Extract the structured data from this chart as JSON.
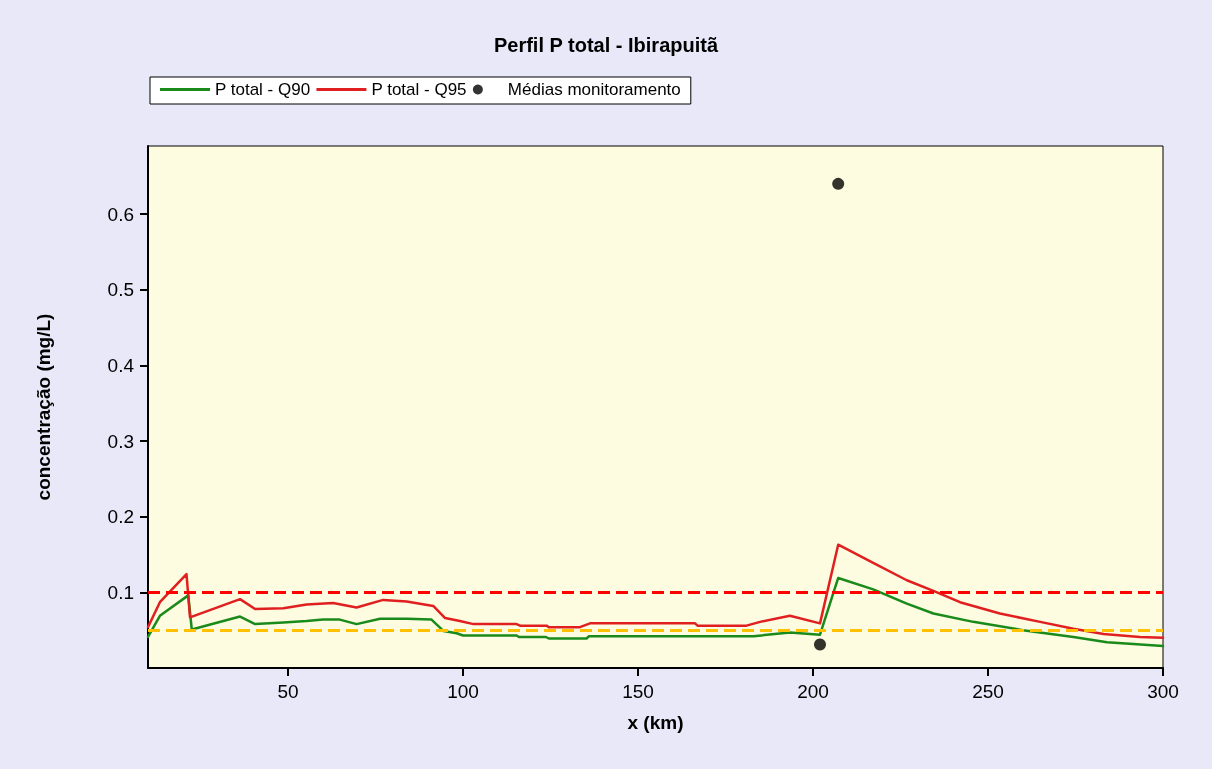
{
  "chart_data": {
    "type": "line",
    "title": "Perfil P total - Ibirapuitã",
    "xlabel": "x (km)",
    "ylabel": "concentração (mg/L)",
    "xlim": [
      10,
      300
    ],
    "xticks": [
      50,
      100,
      150,
      200,
      250,
      300
    ],
    "ylim": [
      0,
      0.69
    ],
    "yticks": [
      0.1,
      0.2,
      0.3,
      0.4,
      0.5,
      0.6
    ],
    "grid": false,
    "legend": "top",
    "line_style": "solid",
    "series": [
      {
        "name": "P total - Q90",
        "color": "#1a8a1a",
        "x": [
          10,
          13.4,
          21.5,
          22.5,
          36.3,
          40.6,
          48.7,
          55.3,
          60,
          64.8,
          69.6,
          76.3,
          83.9,
          91,
          94.4,
          98.2,
          100,
          115.3,
          116,
          123.7,
          124.5,
          135.3,
          136,
          183,
          193.4,
          202,
          207.2,
          217.2,
          226.8,
          234.4,
          245.8,
          260,
          274.4,
          284,
          300
        ],
        "values": [
          0.041,
          0.069,
          0.096,
          0.051,
          0.068,
          0.058,
          0.06,
          0.062,
          0.064,
          0.064,
          0.058,
          0.065,
          0.065,
          0.064,
          0.049,
          0.046,
          0.043,
          0.043,
          0.041,
          0.041,
          0.039,
          0.039,
          0.042,
          0.042,
          0.047,
          0.044,
          0.119,
          0.104,
          0.085,
          0.072,
          0.061,
          0.05,
          0.041,
          0.034,
          0.029
        ]
      },
      {
        "name": "P total - Q95",
        "color": "#e02020",
        "x": [
          10,
          13.4,
          21,
          22,
          36.3,
          40.6,
          48.7,
          55.3,
          62.9,
          69.6,
          77.2,
          83.9,
          91.5,
          94.9,
          99.1,
          103,
          115.3,
          116.3,
          123.9,
          124.5,
          133.4,
          136.3,
          166.3,
          167,
          181,
          184.9,
          193.4,
          202,
          207.2,
          217.2,
          226.8,
          234.4,
          242,
          253.4,
          264.9,
          274.4,
          283,
          293.4,
          300
        ],
        "values": [
          0.054,
          0.087,
          0.124,
          0.067,
          0.091,
          0.078,
          0.079,
          0.084,
          0.086,
          0.08,
          0.09,
          0.088,
          0.082,
          0.066,
          0.062,
          0.058,
          0.058,
          0.056,
          0.056,
          0.054,
          0.054,
          0.059,
          0.059,
          0.056,
          0.056,
          0.061,
          0.069,
          0.059,
          0.163,
          0.139,
          0.116,
          0.102,
          0.087,
          0.072,
          0.061,
          0.052,
          0.045,
          0.041,
          0.04
        ]
      },
      {
        "name": "Médias monitoramento",
        "color": "#000000",
        "type": "scatter",
        "marker": "circle",
        "x": [
          202,
          207.2
        ],
        "values": [
          0.031,
          0.64
        ]
      }
    ],
    "ref_lines": [
      {
        "axis": "y",
        "value": 0.1,
        "color": "#ff0000",
        "line_style": "dashed"
      },
      {
        "axis": "y",
        "value": 0.05,
        "color": "#ffc000",
        "line_style": "dashed"
      }
    ]
  }
}
